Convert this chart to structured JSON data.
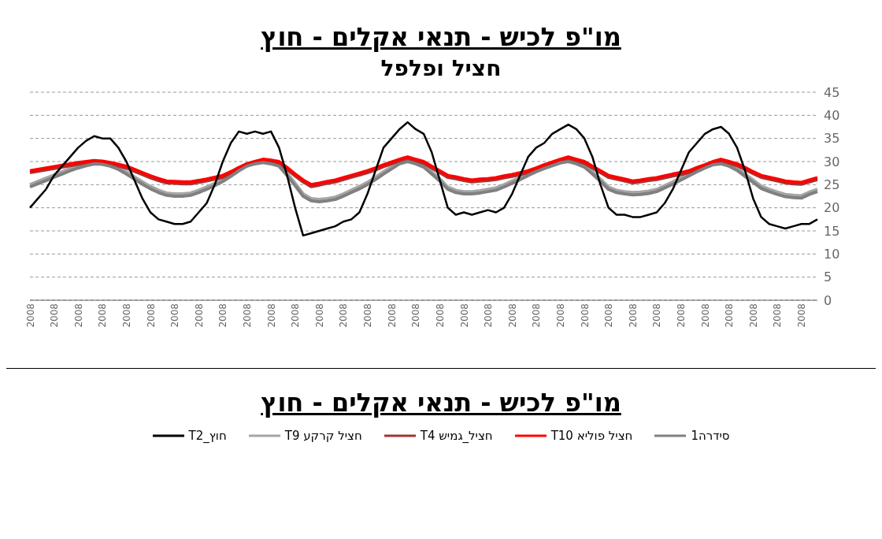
{
  "chart_data": {
    "type": "line",
    "title": "מו\"פ לכיש - תנאי אקלים - חוץ",
    "subtitle": "חציל ופלפל",
    "annotations": [
      "מו\"פ לכיש - תנאי אקלים - חוץ"
    ],
    "categories": [
      "2008",
      null,
      null,
      "2008",
      null,
      null,
      "2008",
      null,
      null,
      "2008",
      null,
      null,
      "2008",
      null,
      null,
      "2008",
      null,
      null,
      "2008",
      null,
      null,
      "2008",
      null,
      null,
      "2008",
      null,
      null,
      "2008",
      null,
      null,
      "2008",
      null,
      null,
      "2008",
      null,
      null,
      "2008",
      null,
      null,
      "2008",
      null,
      null,
      "2008",
      null,
      null,
      "2008",
      null,
      null,
      "2008",
      null,
      null,
      "2008",
      null,
      null,
      "2008",
      null,
      null,
      "2008",
      null,
      null,
      "2008",
      null,
      null,
      "2008",
      null,
      null,
      "2008",
      null,
      null,
      "2008",
      null,
      null,
      "2008",
      null,
      null,
      "2008",
      null,
      null,
      "2008",
      null,
      null,
      "2008",
      null,
      null,
      "2008",
      null,
      null,
      "2008",
      null,
      null,
      "2008",
      null,
      null,
      "2008",
      null,
      null,
      "2008",
      null,
      null
    ],
    "ylim": [
      0,
      45
    ],
    "yticks": [
      0,
      5,
      10,
      15,
      20,
      25,
      30,
      35,
      40,
      45
    ],
    "grid": "y",
    "legend": "bottom",
    "series": [
      {
        "name": "חוץ_T2",
        "color": "#000000",
        "values": [
          20,
          22,
          24,
          27,
          29,
          31,
          33,
          34.5,
          35.5,
          35,
          35,
          33,
          30,
          26,
          22,
          19,
          17.5,
          17,
          16.5,
          16.5,
          17,
          19,
          21,
          25,
          30,
          34,
          36.5,
          36,
          36.5,
          36,
          36.5,
          33,
          27,
          20,
          14,
          14.5,
          15,
          15.5,
          16,
          17,
          17.5,
          19,
          23,
          28,
          33,
          35,
          37,
          38.5,
          37,
          36,
          32,
          26,
          20,
          18.5,
          19,
          18.5,
          19,
          19.5,
          19,
          20,
          23,
          27,
          31,
          33,
          34,
          36,
          37,
          38,
          37,
          35,
          31,
          25,
          20,
          18.5,
          18.5,
          18,
          18,
          18.5,
          19,
          21,
          24,
          28,
          32,
          34,
          36,
          37,
          37.5,
          36,
          33,
          28,
          22,
          18,
          16.5,
          16,
          15.5,
          16,
          16.5,
          16.5,
          17.5
        ]
      },
      {
        "name": "חציל קרקע T9",
        "color": "#a6a6a6",
        "values": [
          25,
          25.7,
          26.4,
          27.1,
          27.8,
          28.5,
          29.1,
          29.6,
          30,
          29.9,
          29.5,
          28.8,
          27.8,
          26.7,
          25.6,
          24.6,
          23.8,
          23.2,
          23,
          23,
          23.2,
          23.8,
          24.5,
          25.3,
          26.2,
          27.3,
          28.5,
          29.5,
          30,
          30.3,
          30,
          29.5,
          27.5,
          25.3,
          23,
          22,
          21.8,
          22,
          22.3,
          23,
          23.8,
          24.6,
          25.5,
          26.6,
          27.8,
          28.9,
          30,
          30.5,
          30,
          29.3,
          27.8,
          26.3,
          24.5,
          23.8,
          23.5,
          23.5,
          23.7,
          24,
          24.3,
          25,
          25.8,
          26.6,
          27.5,
          28.3,
          29,
          29.6,
          30.2,
          30.5,
          30,
          29.3,
          27.8,
          26.2,
          24.5,
          23.8,
          23.5,
          23.3,
          23.4,
          23.6,
          24,
          24.8,
          25.6,
          26.5,
          27.4,
          28.3,
          29.1,
          29.8,
          30,
          29.5,
          28.6,
          27.3,
          26,
          24.7,
          24,
          23.4,
          22.9,
          22.7,
          22.6,
          23.4,
          24
        ]
      },
      {
        "name": "חציל_גמיש T4",
        "color": "#a83232",
        "values": [
          27.6,
          27.9,
          28.2,
          28.5,
          28.8,
          29.1,
          29.4,
          29.6,
          29.8,
          29.7,
          29.4,
          29,
          28.6,
          27.9,
          27.2,
          26.5,
          25.9,
          25.4,
          25.3,
          25.2,
          25.2,
          25.5,
          25.8,
          26.2,
          26.6,
          27.4,
          28.3,
          29.1,
          29.6,
          30.1,
          29.9,
          29.6,
          28.3,
          26.9,
          25.6,
          24.6,
          24.9,
          25.3,
          25.6,
          26.1,
          26.6,
          27.1,
          27.6,
          28.2,
          28.9,
          29.5,
          30.1,
          30.6,
          30.1,
          29.6,
          28.6,
          27.6,
          26.6,
          26.3,
          25.9,
          25.6,
          25.8,
          25.9,
          26.1,
          26.5,
          26.8,
          27.2,
          27.6,
          28.2,
          28.9,
          29.5,
          30.1,
          30.6,
          30.1,
          29.6,
          28.6,
          27.6,
          26.6,
          26.2,
          25.8,
          25.4,
          25.6,
          25.9,
          26.1,
          26.5,
          26.9,
          27.2,
          27.6,
          28.3,
          28.9,
          29.6,
          30.1,
          29.6,
          29.1,
          28.3,
          27.4,
          26.6,
          26.2,
          25.8,
          25.4,
          25.2,
          25.1,
          25.6,
          26.1
        ]
      },
      {
        "name": "חציל פוליא T10",
        "color": "#ff0000",
        "values": [
          28,
          28.3,
          28.6,
          28.9,
          29.2,
          29.5,
          29.8,
          30,
          30.2,
          30.1,
          29.8,
          29.4,
          29,
          28.3,
          27.6,
          26.9,
          26.3,
          25.8,
          25.7,
          25.6,
          25.6,
          25.9,
          26.2,
          26.6,
          27,
          27.8,
          28.7,
          29.5,
          30,
          30.5,
          30.3,
          30,
          28.7,
          27.3,
          26,
          25,
          25.3,
          25.7,
          26,
          26.5,
          27,
          27.5,
          28,
          28.6,
          29.3,
          29.9,
          30.5,
          31,
          30.5,
          30,
          29,
          28,
          27,
          26.7,
          26.3,
          26,
          26.2,
          26.3,
          26.5,
          26.9,
          27.2,
          27.6,
          28,
          28.6,
          29.3,
          29.9,
          30.5,
          31,
          30.5,
          30,
          29,
          28,
          27,
          26.6,
          26.2,
          25.8,
          26,
          26.3,
          26.5,
          26.9,
          27.3,
          27.6,
          28,
          28.7,
          29.3,
          30,
          30.5,
          30,
          29.5,
          28.7,
          27.8,
          27,
          26.6,
          26.2,
          25.8,
          25.6,
          25.5,
          26,
          26.5
        ]
      },
      {
        "name": "סידרה1",
        "color": "#808080",
        "values": [
          24.5,
          25.2,
          25.9,
          26.6,
          27.3,
          28,
          28.6,
          29.1,
          29.5,
          29.4,
          29,
          28.3,
          27.3,
          26.2,
          25.1,
          24.1,
          23.3,
          22.7,
          22.5,
          22.5,
          22.7,
          23.3,
          24,
          24.8,
          25.7,
          26.8,
          28,
          29,
          29.5,
          29.8,
          29.5,
          29,
          27,
          24.8,
          22.5,
          21.5,
          21.3,
          21.5,
          21.8,
          22.5,
          23.3,
          24.1,
          25,
          26.1,
          27.3,
          28.4,
          29.5,
          30,
          29.5,
          28.8,
          27.3,
          25.8,
          24,
          23.3,
          23,
          23,
          23.2,
          23.5,
          23.8,
          24.5,
          25.3,
          26.1,
          27,
          27.8,
          28.5,
          29.1,
          29.7,
          30,
          29.5,
          28.8,
          27.3,
          25.7,
          24,
          23.3,
          23,
          22.8,
          22.9,
          23.1,
          23.5,
          24.3,
          25.1,
          26,
          26.9,
          27.8,
          28.6,
          29.3,
          29.5,
          29,
          28.1,
          26.8,
          25.5,
          24.2,
          23.5,
          22.9,
          22.4,
          22.2,
          22.1,
          22.9,
          23.5
        ]
      }
    ]
  }
}
